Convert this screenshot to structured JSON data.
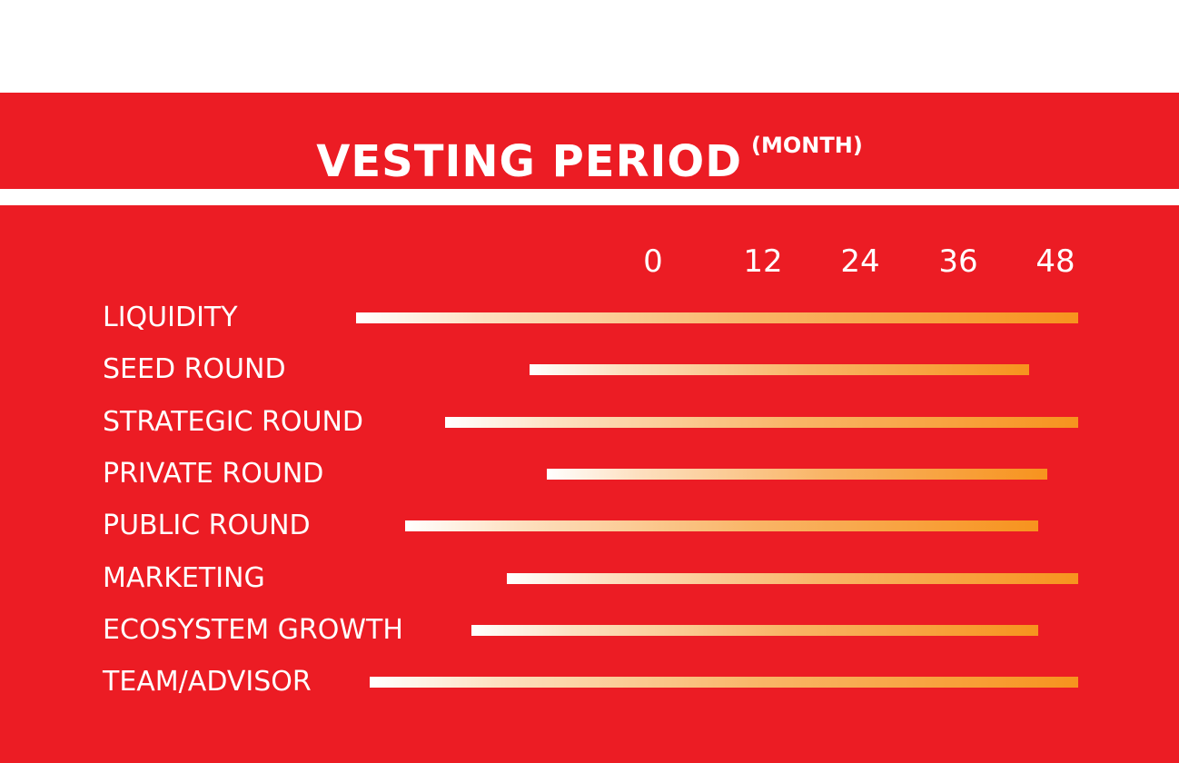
{
  "header": {
    "title": "VESTING PERIOD",
    "title_suffix": "(MONTH)"
  },
  "colors": {
    "background": "#ec1c24",
    "bar_start": "#ffffff",
    "bar_end": "#f7931e",
    "text": "#ffffff"
  },
  "chart_data": {
    "type": "bar",
    "orientation": "horizontal",
    "title": "VESTING PERIOD (MONTH)",
    "x_ticks": [
      "0",
      "12",
      "24",
      "36",
      "48"
    ],
    "x_tick_values": [
      0,
      12,
      24,
      36,
      48
    ],
    "xlim": [
      0,
      48
    ],
    "grid": false,
    "legend": "none",
    "categories": [
      "LIQUIDITY",
      "SEED ROUND",
      "STRATEGIC ROUND",
      "PRIVATE ROUND",
      "PUBLIC ROUND",
      "MARKETING",
      "ECOSYSTEM GROWTH",
      "TEAM/ADVISOR"
    ],
    "bars": [
      {
        "label": "LIQUIDITY",
        "start": -33.5,
        "end": 48
      },
      {
        "label": "SEED ROUND",
        "start": -14,
        "end": 42.5
      },
      {
        "label": "STRATEGIC ROUND",
        "start": -23.5,
        "end": 48
      },
      {
        "label": "PRIVATE ROUND",
        "start": -12,
        "end": 44.5
      },
      {
        "label": "PUBLIC ROUND",
        "start": -28,
        "end": 43.5
      },
      {
        "label": "MARKETING",
        "start": -16.5,
        "end": 48
      },
      {
        "label": "ECOSYSTEM GROWTH",
        "start": -20.5,
        "end": 43.5
      },
      {
        "label": "TEAM/ADVISOR",
        "start": -32,
        "end": 48
      }
    ]
  }
}
